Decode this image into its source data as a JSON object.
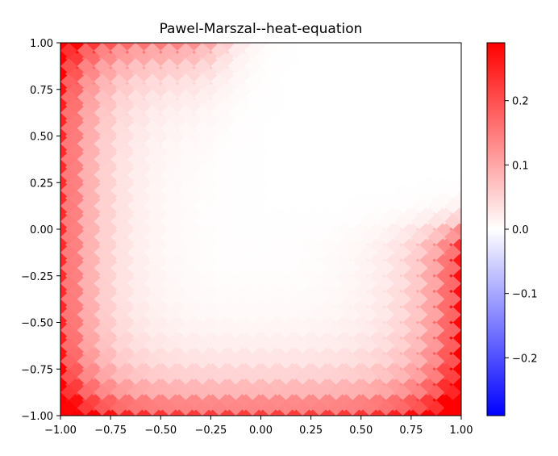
{
  "chart_data": {
    "type": "heatmap",
    "title": "Pawel-Marszal--heat-equation",
    "xlabel": "",
    "ylabel": "",
    "xlim": [
      -1.0,
      1.0
    ],
    "ylim": [
      -1.0,
      1.0
    ],
    "xticks": [
      "−1.00",
      "−0.75",
      "−0.50",
      "−0.25",
      "0.00",
      "0.25",
      "0.50",
      "0.75",
      "1.00"
    ],
    "xtick_values": [
      -1.0,
      -0.75,
      -0.5,
      -0.25,
      0.0,
      0.25,
      0.5,
      0.75,
      1.0
    ],
    "yticks": [
      "−1.00",
      "−0.75",
      "−0.50",
      "−0.25",
      "0.00",
      "0.25",
      "0.50",
      "0.75",
      "1.00"
    ],
    "ytick_values": [
      -1.0,
      -0.75,
      -0.5,
      -0.25,
      0.0,
      0.25,
      0.5,
      0.75,
      1.0
    ],
    "colormap": "bwr",
    "colorbar": {
      "range": [
        -0.29,
        0.29
      ],
      "ticks": [
        "−0.2",
        "−0.1",
        "0.0",
        "0.1",
        "0.2"
      ],
      "tick_values": [
        -0.2,
        -0.1,
        0.0,
        0.1,
        0.2
      ]
    },
    "field": {
      "grid": "25x25 diamond-shaped cells over [-1,1]x[-1,1]",
      "boundary": {
        "left": 0.24,
        "bottom": 0.22,
        "right_y_from_-1_to_0": 0.27,
        "top_x_from_-1_to_-0.2": 0.14
      },
      "interior": 0.0,
      "decay_length": 0.16
    },
    "grid": false
  }
}
